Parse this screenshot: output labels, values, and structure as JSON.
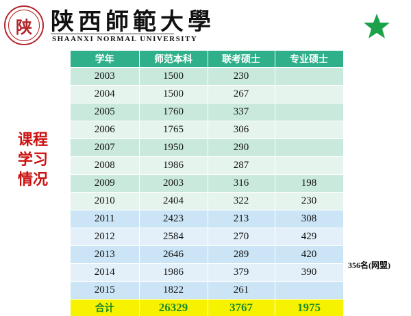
{
  "logo": {
    "seal_char": "陕",
    "name_cn": "陕西師範大學",
    "name_en": "SHAANXI NORMAL UNIVERSITY"
  },
  "side_label": [
    "课程",
    "学习",
    "情况"
  ],
  "table": {
    "headers": [
      "学年",
      "师范本科",
      "联考硕士",
      "专业硕士"
    ],
    "rows": [
      [
        "2003",
        "1500",
        "230",
        ""
      ],
      [
        "2004",
        "1500",
        "267",
        ""
      ],
      [
        "2005",
        "1760",
        "337",
        ""
      ],
      [
        "2006",
        "1765",
        "306",
        ""
      ],
      [
        "2007",
        "1950",
        "290",
        ""
      ],
      [
        "2008",
        "1986",
        "287",
        ""
      ],
      [
        "2009",
        "2003",
        "316",
        "198"
      ],
      [
        "2010",
        "2404",
        "322",
        "230"
      ],
      [
        "2011",
        "2423",
        "213",
        "308"
      ],
      [
        "2012",
        "2584",
        "270",
        "429"
      ],
      [
        "2013",
        "2646",
        "289",
        "420"
      ],
      [
        "2014",
        "1986",
        "379",
        "390"
      ],
      [
        "2015",
        "1822",
        "261",
        ""
      ]
    ],
    "total": [
      "合计",
      "26329",
      "3767",
      "1975"
    ]
  },
  "note": "356名(网盟)",
  "colors": {
    "header": "#2fb08a",
    "total_bg": "#f7f200",
    "total_text": "#1a8a2a",
    "label_red": "#cc1111",
    "star": "#1aa14a"
  }
}
